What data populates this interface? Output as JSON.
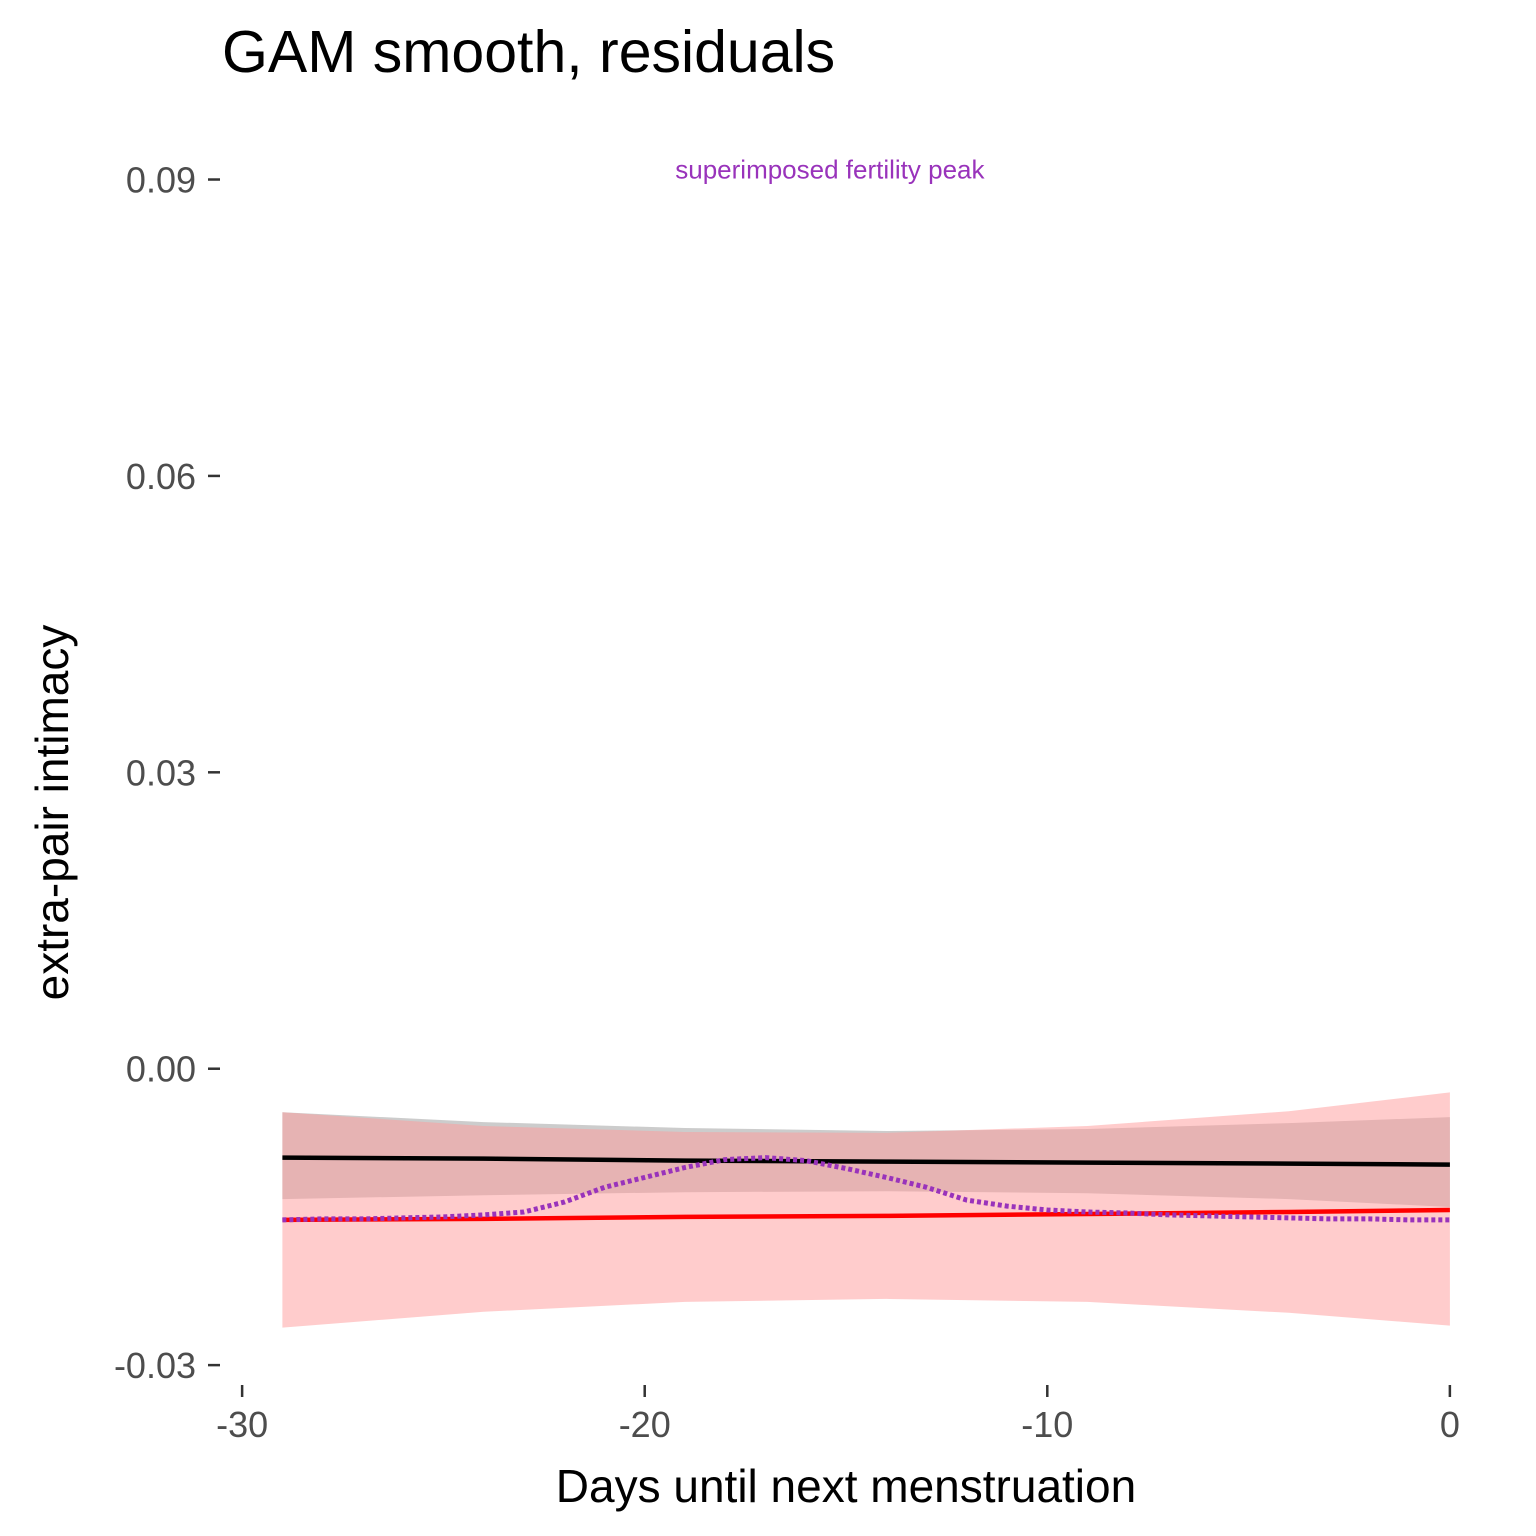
{
  "chart_data": {
    "type": "line",
    "title": "GAM smooth, residuals",
    "xlabel": "Days until next menstruation",
    "ylabel": "extra-pair intimacy",
    "xlim": [
      -30.5,
      0.5
    ],
    "ylim": [
      -0.031,
      0.094
    ],
    "x_ticks": [
      -30,
      -20,
      -10,
      0
    ],
    "x_tick_labels": [
      "-30",
      "-20",
      "-10",
      "0"
    ],
    "y_ticks": [
      -0.03,
      0.0,
      0.03,
      0.06,
      0.09
    ],
    "y_tick_labels": [
      "-0.03",
      "0.00",
      "0.03",
      "0.06",
      "0.09"
    ],
    "grid": false,
    "annotation": {
      "text": "superimposed fertility peak",
      "x": -15.4,
      "y": 0.091,
      "color": "#9933bb"
    },
    "series": [
      {
        "color": "#000000",
        "style": "solid",
        "band_color": "#999999",
        "band_opacity": 0.5,
        "x": [
          -29,
          -24,
          -19,
          -14,
          -9,
          -4,
          0
        ],
        "y": [
          -0.009,
          -0.0091,
          -0.0093,
          -0.0094,
          -0.0095,
          -0.0096,
          -0.0097
        ],
        "lower": [
          -0.0132,
          -0.0128,
          -0.0125,
          -0.0124,
          -0.0126,
          -0.0132,
          -0.014
        ],
        "upper": [
          -0.0044,
          -0.0054,
          -0.006,
          -0.0063,
          -0.0061,
          -0.0055,
          -0.0049
        ]
      },
      {
        "color": "#ff0000",
        "style": "solid",
        "band_color": "#ff9999",
        "band_opacity": 0.5,
        "x": [
          -29,
          -24,
          -19,
          -14,
          -9,
          -4,
          0
        ],
        "y": [
          -0.0153,
          -0.0152,
          -0.015,
          -0.0149,
          -0.0147,
          -0.0145,
          -0.0143
        ],
        "lower": [
          -0.0262,
          -0.0246,
          -0.0236,
          -0.0233,
          -0.0236,
          -0.0247,
          -0.026
        ],
        "upper": [
          -0.0044,
          -0.0058,
          -0.0064,
          -0.0065,
          -0.0058,
          -0.0043,
          -0.0024
        ]
      },
      {
        "color": "#9933bb",
        "style": "dotted",
        "x": [
          -29,
          -28,
          -27,
          -26,
          -25,
          -24,
          -23,
          -22,
          -21,
          -20,
          -19,
          -18,
          -17,
          -16,
          -15,
          -14,
          -13,
          -12,
          -11,
          -10,
          -9,
          -8,
          -7,
          -6,
          -5,
          -4,
          -3,
          -2,
          -1,
          0
        ],
        "y": [
          -0.0153,
          -0.0152,
          -0.0152,
          -0.0151,
          -0.015,
          -0.0148,
          -0.0145,
          -0.0135,
          -0.012,
          -0.011,
          -0.01,
          -0.0092,
          -0.009,
          -0.0093,
          -0.0101,
          -0.011,
          -0.012,
          -0.0133,
          -0.0139,
          -0.0143,
          -0.0145,
          -0.0146,
          -0.0148,
          -0.0149,
          -0.015,
          -0.0151,
          -0.0152,
          -0.0152,
          -0.0153,
          -0.0153
        ]
      }
    ]
  }
}
